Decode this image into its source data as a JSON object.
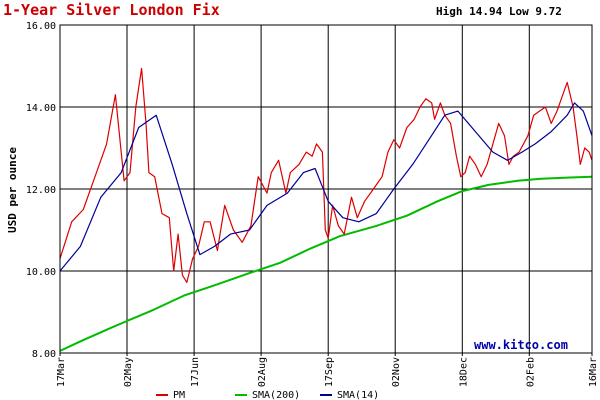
{
  "chart_data": {
    "type": "line",
    "title": "1-Year Silver London Fix",
    "high_low": "High 14.94 Low 9.72",
    "ylabel": "USD per ounce",
    "ylim": [
      8.0,
      16.0
    ],
    "y_ticks": [
      "8.00",
      "10.00",
      "12.00",
      "14.00",
      "16.00"
    ],
    "x_tick_labels": [
      "17Mar",
      "02May",
      "17Jun",
      "02Aug",
      "17Sep",
      "02Nov",
      "18Dec",
      "02Feb",
      "16Mar"
    ],
    "x_tick_dates": [
      "2007-03-17",
      "2007-05-02",
      "2007-06-17",
      "2007-08-02",
      "2007-09-17",
      "2007-11-02",
      "2007-12-18",
      "2008-02-02",
      "2008-03-16"
    ],
    "x_gridlines": [
      "2007-05-02",
      "2007-06-17",
      "2007-08-02",
      "2007-09-17",
      "2007-11-02",
      "2007-12-18",
      "2008-02-02"
    ],
    "x_range": [
      "2007-03-17",
      "2008-03-16"
    ],
    "grid": true,
    "watermark": "www.kitco.com",
    "colors": {
      "title": "#cc0000",
      "pm": "#dd0000",
      "sma200": "#00bb00",
      "sma14": "#000099",
      "grid": "#000000",
      "watermark": "#0000aa"
    },
    "series": [
      {
        "name": "PM",
        "color": "#dd0000",
        "x": [
          "2007-03-17",
          "2007-03-25",
          "2007-04-02",
          "2007-04-10",
          "2007-04-18",
          "2007-04-24",
          "2007-04-30",
          "2007-05-04",
          "2007-05-08",
          "2007-05-12",
          "2007-05-15",
          "2007-05-17",
          "2007-05-21",
          "2007-05-26",
          "2007-05-31",
          "2007-06-03",
          "2007-06-06",
          "2007-06-09",
          "2007-06-12",
          "2007-06-16",
          "2007-06-20",
          "2007-06-24",
          "2007-06-28",
          "2007-07-03",
          "2007-07-08",
          "2007-07-14",
          "2007-07-20",
          "2007-07-26",
          "2007-07-31",
          "2007-08-03",
          "2007-08-06",
          "2007-08-09",
          "2007-08-14",
          "2007-08-19",
          "2007-08-22",
          "2007-08-28",
          "2007-09-02",
          "2007-09-06",
          "2007-09-09",
          "2007-09-13",
          "2007-09-15",
          "2007-09-17",
          "2007-09-20",
          "2007-09-24",
          "2007-09-28",
          "2007-10-03",
          "2007-10-07",
          "2007-10-12",
          "2007-10-16",
          "2007-10-20",
          "2007-10-24",
          "2007-10-28",
          "2007-11-01",
          "2007-11-05",
          "2007-11-10",
          "2007-11-15",
          "2007-11-19",
          "2007-11-23",
          "2007-11-27",
          "2007-11-29",
          "2007-12-03",
          "2007-12-06",
          "2007-12-10",
          "2007-12-14",
          "2007-12-17",
          "2007-12-20",
          "2007-12-23",
          "2007-12-27",
          "2007-12-31",
          "2008-01-04",
          "2008-01-08",
          "2008-01-12",
          "2008-01-16",
          "2008-01-19",
          "2008-01-22",
          "2008-01-26",
          "2008-02-01",
          "2008-02-05",
          "2008-02-09",
          "2008-02-13",
          "2008-02-17",
          "2008-02-21",
          "2008-02-25",
          "2008-02-28",
          "2008-03-03",
          "2008-03-06",
          "2008-03-08",
          "2008-03-11",
          "2008-03-14",
          "2008-03-16"
        ],
        "values": [
          10.3,
          11.2,
          11.5,
          12.3,
          13.1,
          14.3,
          12.2,
          12.4,
          14.0,
          14.94,
          13.6,
          12.4,
          12.3,
          11.4,
          11.3,
          10.0,
          10.9,
          9.9,
          9.72,
          10.3,
          10.6,
          11.2,
          11.2,
          10.5,
          11.6,
          11.0,
          10.7,
          11.1,
          12.3,
          12.1,
          11.9,
          12.4,
          12.7,
          11.9,
          12.4,
          12.6,
          12.9,
          12.8,
          13.1,
          12.9,
          11.0,
          10.8,
          11.6,
          11.1,
          10.9,
          11.8,
          11.3,
          11.7,
          11.9,
          12.1,
          12.3,
          12.9,
          13.2,
          13.0,
          13.5,
          13.7,
          14.0,
          14.2,
          14.1,
          13.7,
          14.1,
          13.8,
          13.6,
          12.8,
          12.3,
          12.4,
          12.8,
          12.6,
          12.3,
          12.6,
          13.1,
          13.6,
          13.3,
          12.6,
          12.8,
          12.9,
          13.3,
          13.8,
          13.9,
          14.0,
          13.6,
          13.9,
          14.3,
          14.6,
          14.0,
          13.2,
          12.6,
          13.0,
          12.9,
          12.7
        ]
      },
      {
        "name": "SMA(200)",
        "color": "#00bb00",
        "x": [
          "2007-03-17",
          "2007-04-01",
          "2007-04-20",
          "2007-05-02",
          "2007-05-20",
          "2007-06-10",
          "2007-07-01",
          "2007-07-25",
          "2007-08-15",
          "2007-09-05",
          "2007-09-25",
          "2007-10-20",
          "2007-11-10",
          "2007-12-01",
          "2007-12-18",
          "2008-01-05",
          "2008-01-25",
          "2008-02-10",
          "2008-03-01",
          "2008-03-16"
        ],
        "values": [
          8.05,
          8.3,
          8.6,
          8.78,
          9.05,
          9.4,
          9.65,
          9.95,
          10.2,
          10.55,
          10.85,
          11.1,
          11.35,
          11.7,
          11.95,
          12.1,
          12.2,
          12.25,
          12.28,
          12.3
        ]
      },
      {
        "name": "SMA(14)",
        "color": "#000099",
        "x": [
          "2007-03-17",
          "2007-03-31",
          "2007-04-14",
          "2007-04-28",
          "2007-05-10",
          "2007-05-22",
          "2007-06-02",
          "2007-06-12",
          "2007-06-21",
          "2007-07-01",
          "2007-07-12",
          "2007-07-25",
          "2007-08-06",
          "2007-08-20",
          "2007-08-31",
          "2007-09-08",
          "2007-09-17",
          "2007-09-27",
          "2007-10-08",
          "2007-10-20",
          "2007-11-01",
          "2007-11-14",
          "2007-11-25",
          "2007-12-06",
          "2007-12-15",
          "2007-12-27",
          "2008-01-08",
          "2008-01-18",
          "2008-01-28",
          "2008-02-06",
          "2008-02-17",
          "2008-02-28",
          "2008-03-04",
          "2008-03-10",
          "2008-03-16"
        ],
        "values": [
          10.0,
          10.6,
          11.8,
          12.4,
          13.5,
          13.8,
          12.6,
          11.4,
          10.4,
          10.6,
          10.9,
          11.0,
          11.6,
          11.9,
          12.4,
          12.5,
          11.7,
          11.3,
          11.2,
          11.4,
          12.0,
          12.6,
          13.2,
          13.8,
          13.9,
          13.4,
          12.9,
          12.7,
          12.9,
          13.1,
          13.4,
          13.8,
          14.1,
          13.9,
          13.3
        ]
      }
    ]
  }
}
